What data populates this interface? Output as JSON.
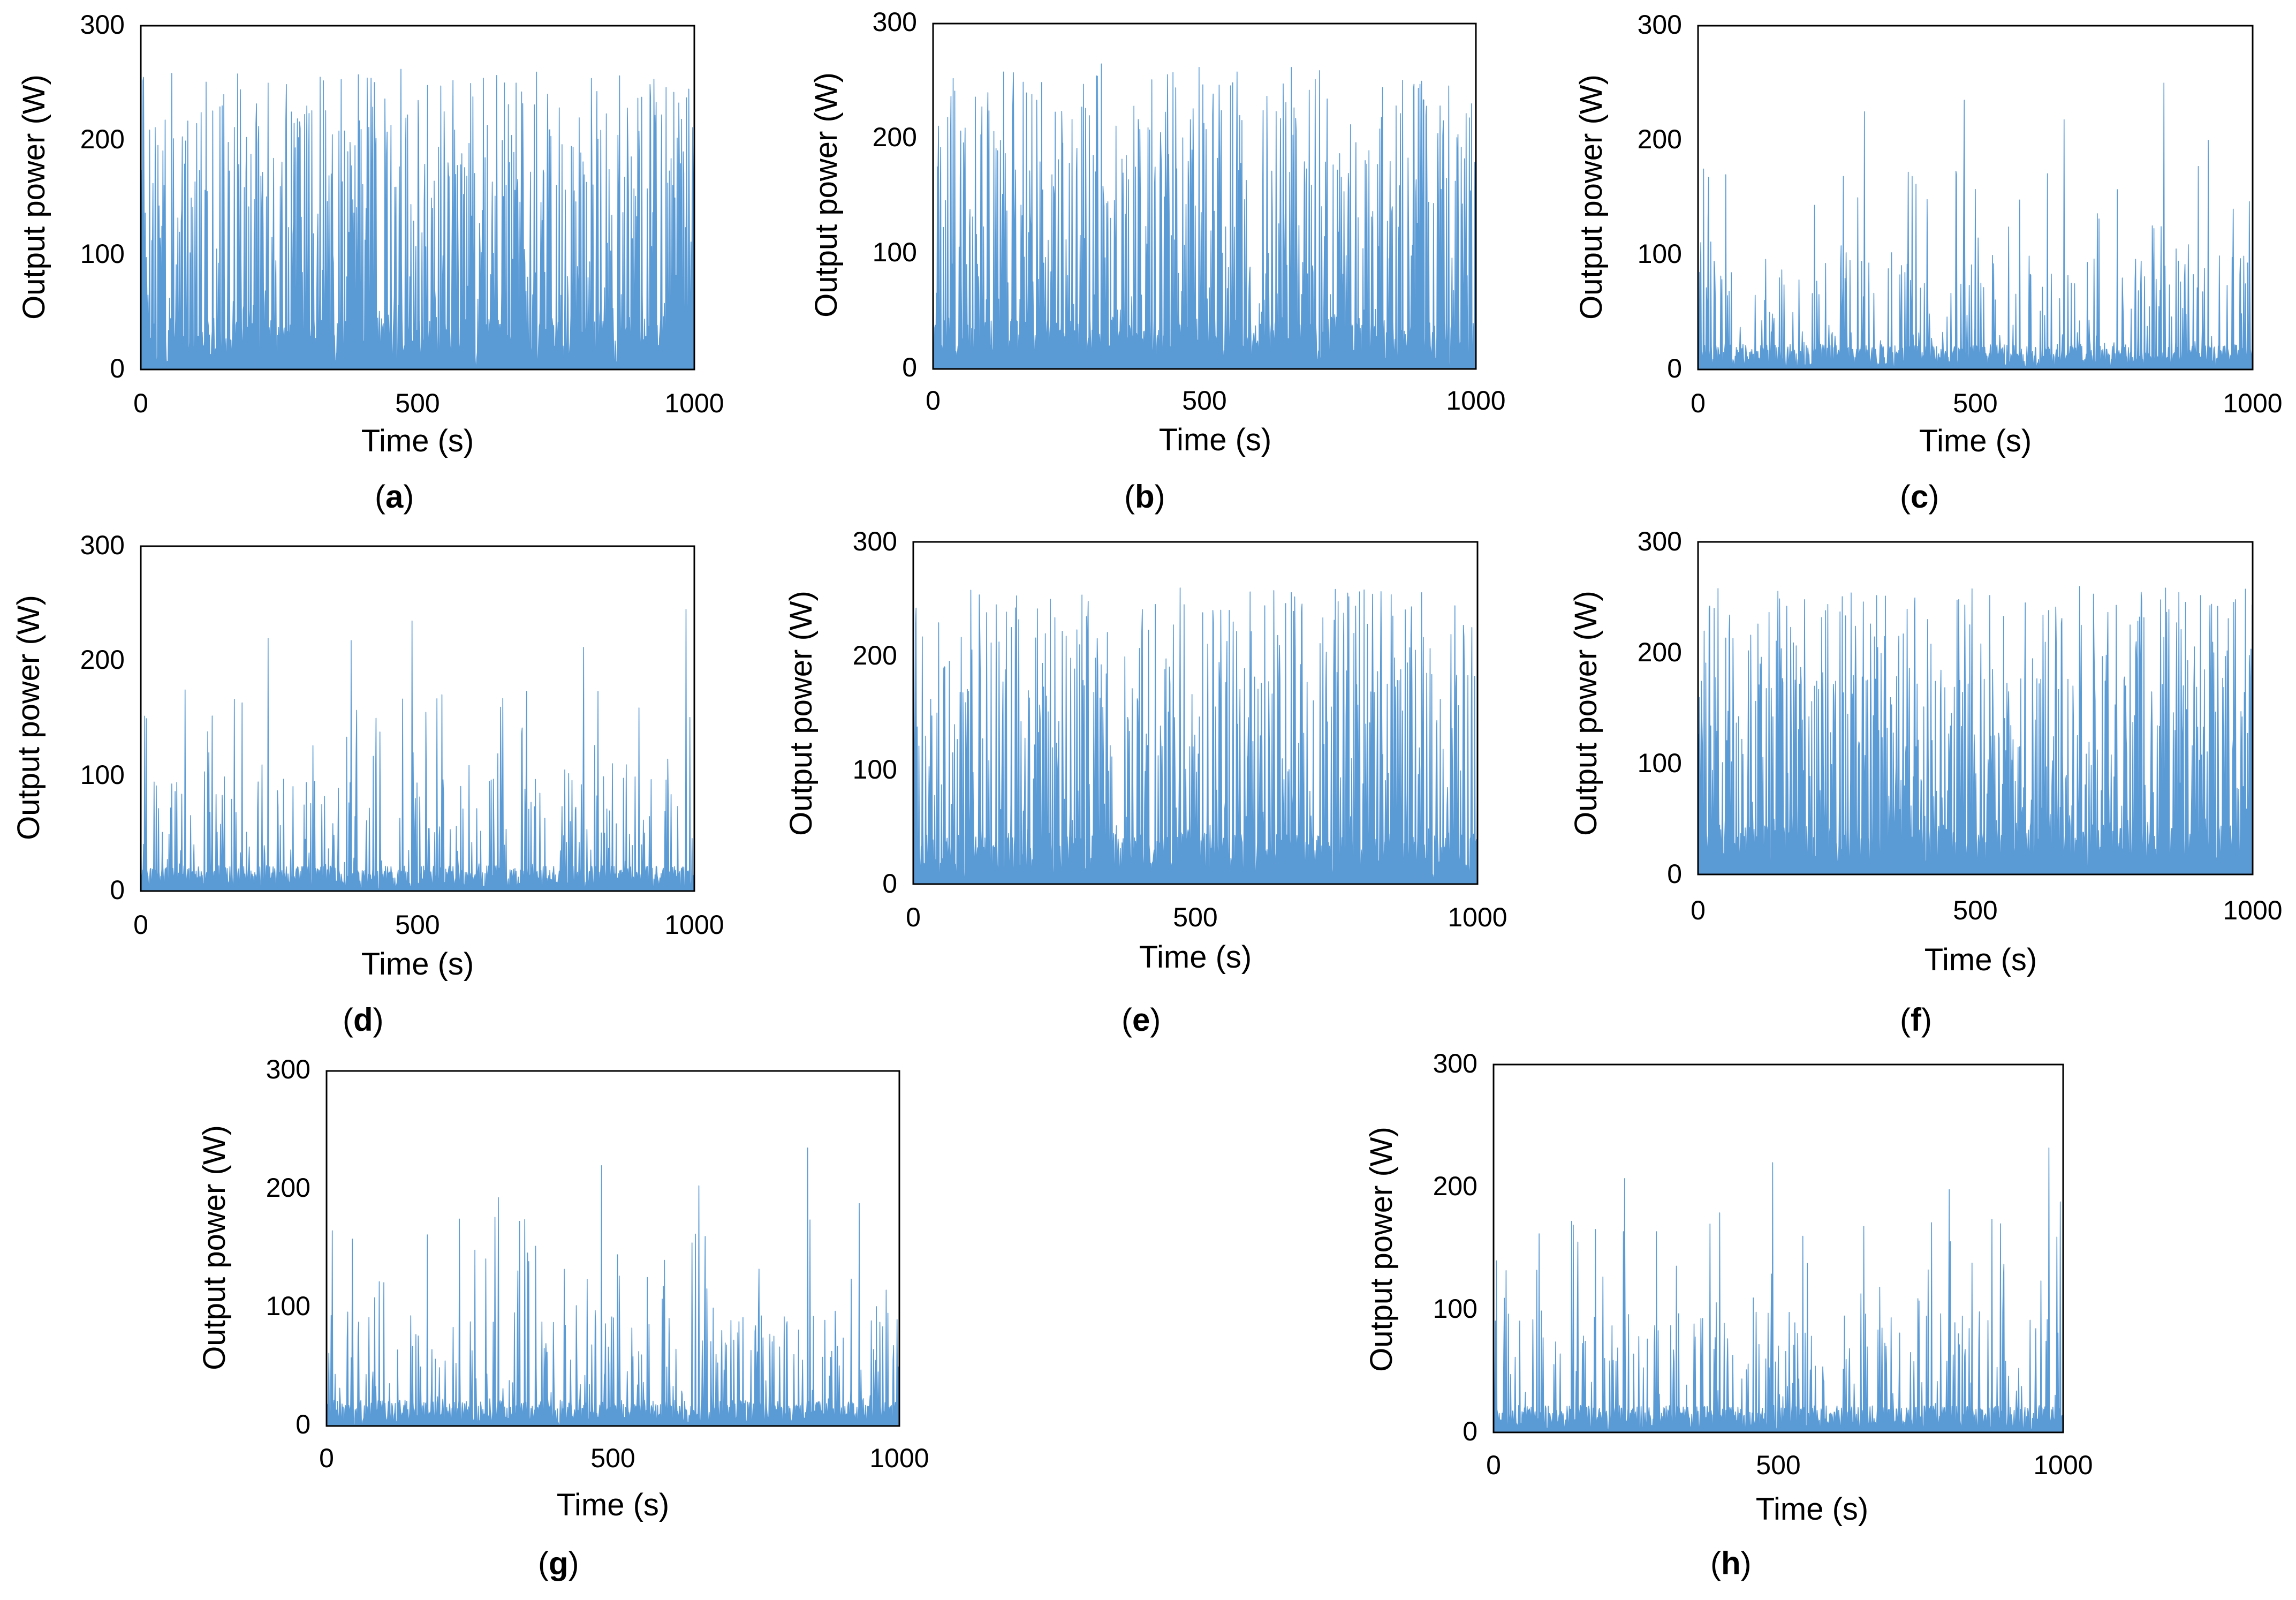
{
  "figure": {
    "background_color": "#ffffff",
    "series_color": "#5b9bd5",
    "frame_color": "#000000"
  },
  "chart_data": [
    {
      "panel": "a",
      "caption_letter": "a",
      "type": "bar",
      "xlabel": "Time (s)",
      "ylabel": "Output power (W)",
      "xlim": [
        0,
        1000
      ],
      "ylim": [
        0,
        300
      ],
      "xticks": [
        0,
        500,
        1000
      ],
      "yticks": [
        0,
        100,
        200,
        300
      ],
      "xtick_labels": [
        "0",
        "500",
        "1000"
      ],
      "ytick_labels": [
        "0",
        "100",
        "200",
        "300"
      ],
      "series": [
        {
          "name": "Output power",
          "profile": "dense-high",
          "sample_interval_s": 1,
          "peak_values": [
            {
              "t": 5,
              "p": 255
            },
            {
              "t": 150,
              "p": 240
            },
            {
              "t": 175,
              "p": 258
            },
            {
              "t": 230,
              "p": 250
            },
            {
              "t": 300,
              "p": 230
            },
            {
              "t": 470,
              "p": 262
            },
            {
              "t": 600,
              "p": 238
            },
            {
              "t": 690,
              "p": 232
            },
            {
              "t": 900,
              "p": 208
            },
            {
              "t": 980,
              "p": 190
            }
          ]
        }
      ]
    },
    {
      "panel": "b",
      "caption_letter": "b",
      "type": "bar",
      "xlabel": "Time (s)",
      "ylabel": "Output power (W)",
      "xlim": [
        0,
        1000
      ],
      "ylim": [
        0,
        300
      ],
      "xticks": [
        0,
        500,
        1000
      ],
      "yticks": [
        0,
        100,
        200,
        300
      ],
      "xtick_labels": [
        "0",
        "500",
        "1000"
      ],
      "ytick_labels": [
        "0",
        "100",
        "200",
        "300"
      ],
      "series": [
        {
          "name": "Output power",
          "profile": "dense-high",
          "sample_interval_s": 1,
          "peak_values": [
            {
              "t": 0,
              "p": 255
            },
            {
              "t": 130,
              "p": 258
            },
            {
              "t": 310,
              "p": 265
            },
            {
              "t": 490,
              "p": 262
            },
            {
              "t": 560,
              "p": 258
            },
            {
              "t": 660,
              "p": 262
            },
            {
              "t": 900,
              "p": 250
            },
            {
              "t": 1000,
              "p": 215
            }
          ]
        }
      ]
    },
    {
      "panel": "c",
      "caption_letter": "c",
      "type": "bar",
      "xlabel": "Time (s)",
      "ylabel": "Output power (W)",
      "xlim": [
        0,
        1000
      ],
      "ylim": [
        0,
        300
      ],
      "xticks": [
        0,
        500,
        1000
      ],
      "yticks": [
        0,
        100,
        200,
        300
      ],
      "xtick_labels": [
        "0",
        "500",
        "1000"
      ],
      "ytick_labels": [
        "0",
        "100",
        "200",
        "300"
      ],
      "series": [
        {
          "name": "Output power",
          "profile": "sparse",
          "sample_interval_s": 1,
          "peak_values": [
            {
              "t": 10,
              "p": 175
            },
            {
              "t": 50,
              "p": 170
            },
            {
              "t": 300,
              "p": 225
            },
            {
              "t": 480,
              "p": 235
            },
            {
              "t": 580,
              "p": 148
            },
            {
              "t": 660,
              "p": 218
            },
            {
              "t": 840,
              "p": 250
            },
            {
              "t": 920,
              "p": 200
            },
            {
              "t": 965,
              "p": 140
            },
            {
              "t": 995,
              "p": 75
            }
          ]
        }
      ]
    },
    {
      "panel": "d",
      "caption_letter": "d",
      "type": "bar",
      "xlabel": "Time (s)",
      "ylabel": "Output power (W)",
      "xlim": [
        0,
        1000
      ],
      "ylim": [
        0,
        300
      ],
      "xticks": [
        0,
        500,
        1000
      ],
      "yticks": [
        0,
        100,
        200,
        300
      ],
      "xtick_labels": [
        "0",
        "500",
        "1000"
      ],
      "ytick_labels": [
        "0",
        "100",
        "200",
        "300"
      ],
      "series": [
        {
          "name": "Output power",
          "profile": "sparse",
          "sample_interval_s": 1,
          "peak_values": [
            {
              "t": 10,
              "p": 150
            },
            {
              "t": 80,
              "p": 175
            },
            {
              "t": 230,
              "p": 220
            },
            {
              "t": 380,
              "p": 218
            },
            {
              "t": 490,
              "p": 235
            },
            {
              "t": 650,
              "p": 160
            },
            {
              "t": 800,
              "p": 212
            },
            {
              "t": 985,
              "p": 245
            }
          ]
        }
      ]
    },
    {
      "panel": "e",
      "caption_letter": "e",
      "type": "bar",
      "xlabel": "Time (s)",
      "ylabel": "Output power (W)",
      "xlim": [
        0,
        1000
      ],
      "ylim": [
        0,
        300
      ],
      "xticks": [
        0,
        500,
        1000
      ],
      "yticks": [
        0,
        100,
        200,
        300
      ],
      "xtick_labels": [
        "0",
        "500",
        "1000"
      ],
      "ytick_labels": [
        "0",
        "100",
        "200",
        "300"
      ],
      "series": [
        {
          "name": "Output power",
          "profile": "dense-high",
          "sample_interval_s": 1,
          "peak_values": [
            {
              "t": 5,
              "p": 242
            },
            {
              "t": 130,
              "p": 238
            },
            {
              "t": 310,
              "p": 248
            },
            {
              "t": 480,
              "p": 245
            },
            {
              "t": 560,
              "p": 240
            },
            {
              "t": 660,
              "p": 246
            },
            {
              "t": 850,
              "p": 235
            },
            {
              "t": 990,
              "p": 225
            }
          ]
        }
      ]
    },
    {
      "panel": "f",
      "caption_letter": "f",
      "type": "bar",
      "xlabel": "Time (s)",
      "ylabel": "Output power (W)",
      "xlim": [
        0,
        1000
      ],
      "ylim": [
        0,
        300
      ],
      "xticks": [
        0,
        500,
        1000
      ],
      "yticks": [
        0,
        100,
        200,
        300
      ],
      "xtick_labels": [
        "0",
        "500",
        "1000"
      ],
      "ytick_labels": [
        "0",
        "100",
        "200",
        "300"
      ],
      "series": [
        {
          "name": "Output power",
          "profile": "dense-high",
          "sample_interval_s": 1,
          "peak_values": [
            {
              "t": 20,
              "p": 240
            },
            {
              "t": 160,
              "p": 242
            },
            {
              "t": 230,
              "p": 238
            },
            {
              "t": 470,
              "p": 248
            },
            {
              "t": 590,
              "p": 245
            },
            {
              "t": 790,
              "p": 210
            },
            {
              "t": 930,
              "p": 200
            },
            {
              "t": 995,
              "p": 178
            }
          ]
        }
      ]
    },
    {
      "panel": "g",
      "caption_letter": "g",
      "type": "bar",
      "xlabel": "Time (s)",
      "ylabel": "Output power (W)",
      "xlim": [
        0,
        1000
      ],
      "ylim": [
        0,
        300
      ],
      "xticks": [
        0,
        500,
        1000
      ],
      "yticks": [
        0,
        100,
        200,
        300
      ],
      "xtick_labels": [
        "0",
        "500",
        "1000"
      ],
      "ytick_labels": [
        "0",
        "100",
        "200",
        "300"
      ],
      "series": [
        {
          "name": "Output power",
          "profile": "sparse",
          "sample_interval_s": 1,
          "peak_values": [
            {
              "t": 10,
              "p": 165
            },
            {
              "t": 45,
              "p": 158
            },
            {
              "t": 300,
              "p": 193
            },
            {
              "t": 480,
              "p": 220
            },
            {
              "t": 590,
              "p": 140
            },
            {
              "t": 650,
              "p": 203
            },
            {
              "t": 840,
              "p": 235
            },
            {
              "t": 930,
              "p": 188
            },
            {
              "t": 990,
              "p": 68
            }
          ]
        }
      ]
    },
    {
      "panel": "h",
      "caption_letter": "h",
      "type": "bar",
      "xlabel": "Time (s)",
      "ylabel": "Output power (W)",
      "xlim": [
        0,
        1000
      ],
      "ylim": [
        0,
        300
      ],
      "xticks": [
        0,
        500,
        1000
      ],
      "yticks": [
        0,
        100,
        200,
        300
      ],
      "xtick_labels": [
        "0",
        "500",
        "1000"
      ],
      "ytick_labels": [
        "0",
        "100",
        "200",
        "300"
      ],
      "series": [
        {
          "name": "Output power",
          "profile": "sparse",
          "sample_interval_s": 1,
          "peak_values": [
            {
              "t": 5,
              "p": 140
            },
            {
              "t": 80,
              "p": 162
            },
            {
              "t": 230,
              "p": 207
            },
            {
              "t": 380,
              "p": 170
            },
            {
              "t": 490,
              "p": 220
            },
            {
              "t": 650,
              "p": 168
            },
            {
              "t": 800,
              "p": 198
            },
            {
              "t": 975,
              "p": 232
            },
            {
              "t": 995,
              "p": 188
            }
          ]
        }
      ]
    }
  ]
}
